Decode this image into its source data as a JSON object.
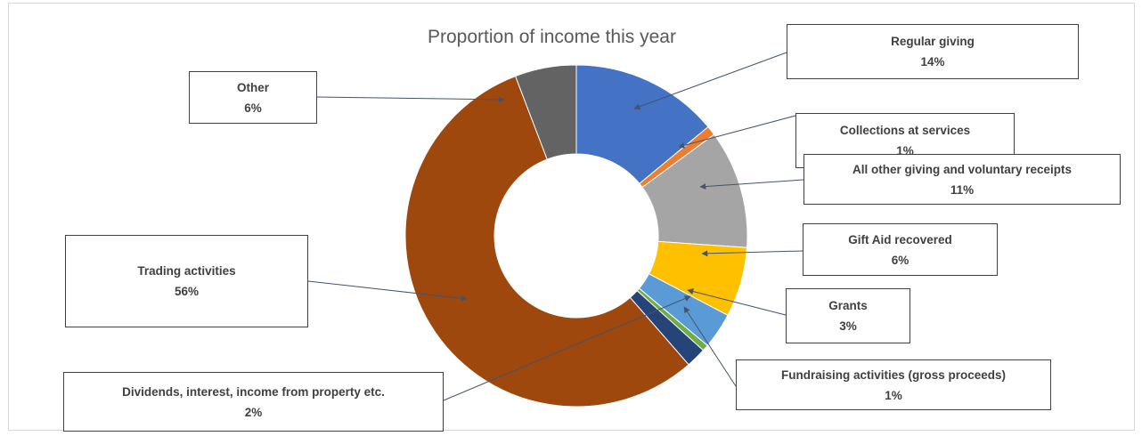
{
  "chart_data": {
    "type": "pie",
    "title": "Proportion of income this year",
    "unit": "%",
    "hole": true,
    "slices": [
      {
        "label": "Regular giving",
        "value": 14,
        "value_label": "14%",
        "color": "#4472c4"
      },
      {
        "label": "Collections at services",
        "value": 1,
        "value_label": "1%",
        "color": "#ed7d31"
      },
      {
        "label": "All other giving and voluntary receipts",
        "value": 11,
        "value_label": "11%",
        "color": "#a5a5a5"
      },
      {
        "label": "Gift Aid recovered",
        "value": 6,
        "value_label": "6%",
        "color": "#ffc000"
      },
      {
        "label": "Grants",
        "value": 3,
        "value_label": "3%",
        "color": "#5b9bd5"
      },
      {
        "label": "Fundraising activities (gross proceeds)",
        "value": 1,
        "value_label": "1%",
        "color": "#70ad47"
      },
      {
        "label": "Dividends, interest, income from property etc.",
        "value": 2,
        "value_label": "2%",
        "color": "#264478"
      },
      {
        "label": "Trading activities",
        "value": 56,
        "value_label": "56%",
        "color": "#9e480e"
      },
      {
        "label": "Other",
        "value": 6,
        "value_label": "6%",
        "color": "#636363"
      }
    ]
  }
}
